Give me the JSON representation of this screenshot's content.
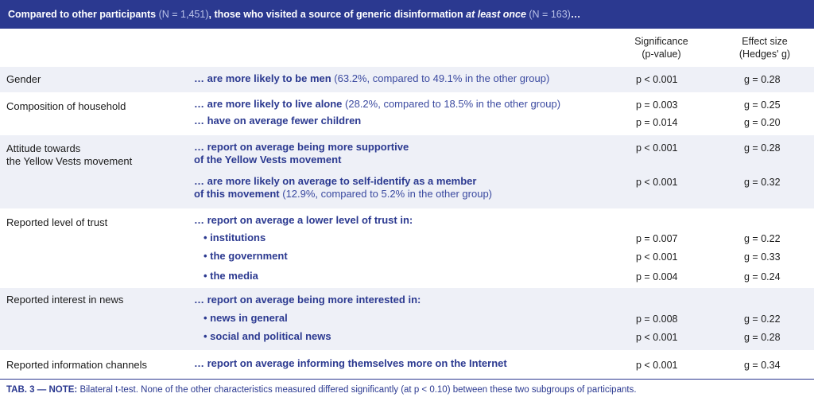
{
  "header": {
    "part1": "Compared to other participants",
    "part2": " (N = 1,451)",
    "part3": ", those who visited a source of generic disinformation ",
    "part4": "at least once",
    "part5": " (N = 163)",
    "part6": "…"
  },
  "columns": {
    "sig_line1": "Significance",
    "sig_line2": "(p-value)",
    "eff_line1": "Effect size",
    "eff_line2": "(Hedges' g)"
  },
  "rows": {
    "gender": {
      "label": "Gender",
      "desc": "… are more likely to be men",
      "detail": " (63.2%, compared to 49.1% in the other group)",
      "p": "p < 0.001",
      "g": "g = 0.28"
    },
    "household": {
      "label": "Composition of household",
      "desc1": "… are more likely to live alone",
      "detail1": " (28.2%, compared to 18.5% in the other group)",
      "p1": "p = 0.003",
      "g1": "g = 0.25",
      "desc2": "… have on average fewer children",
      "p2": "p = 0.014",
      "g2": "g = 0.20"
    },
    "yellow": {
      "label1": "Attitude towards",
      "label2": "the Yellow Vests movement",
      "desc1a": "… report on average being more supportive",
      "desc1b": "of the Yellow Vests movement",
      "p1": "p < 0.001",
      "g1": "g = 0.28",
      "desc2a": "… are more likely on average to self-identify as a member",
      "desc2b": "of this movement",
      "detail2": " (12.9%, compared to 5.2% in the other group)",
      "p2": "p < 0.001",
      "g2": "g = 0.32"
    },
    "trust": {
      "label": "Reported level of trust",
      "desc": "… report on average a lower level of trust in:",
      "b1": "• institutions",
      "p1": "p = 0.007",
      "g1": "g = 0.22",
      "b2": "• the government",
      "p2": "p < 0.001",
      "g2": "g = 0.33",
      "b3": "• the media",
      "p3": "p = 0.004",
      "g3": "g = 0.24"
    },
    "interest": {
      "label": "Reported interest in news",
      "desc": "… report on average being more interested in:",
      "b1": "• news in general",
      "p1": "p = 0.008",
      "g1": "g = 0.22",
      "b2": "• social and political news",
      "p2": "p < 0.001",
      "g2": "g = 0.28"
    },
    "channels": {
      "label": "Reported information channels",
      "desc": "… report on average informing themselves more on the Internet",
      "p": "p < 0.001",
      "g": "g = 0.34"
    }
  },
  "note": {
    "tab": "TAB. 3 — ",
    "label": "NOTE:",
    "text": " Bilateral t-test. None of the other characteristics measured differed significantly (at p < 0.10) between these two subgroups of participants."
  }
}
